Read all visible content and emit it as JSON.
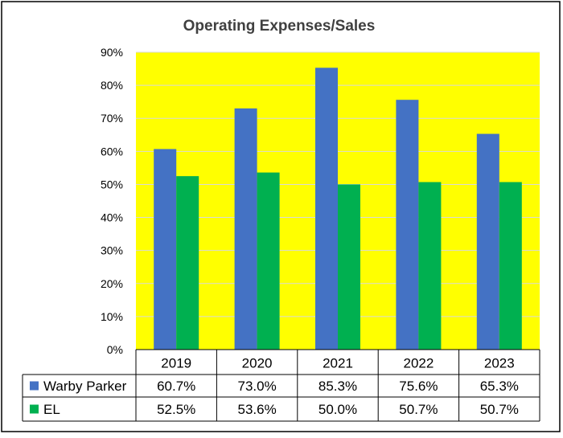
{
  "chart_data": {
    "type": "bar",
    "title": "Operating Expenses/Sales",
    "categories": [
      "2019",
      "2020",
      "2021",
      "2022",
      "2023"
    ],
    "series": [
      {
        "name": "Warby Parker",
        "values": [
          60.7,
          73.0,
          85.3,
          75.6,
          65.3
        ],
        "labels": [
          "60.7%",
          "73.0%",
          "85.3%",
          "75.6%",
          "65.3%"
        ],
        "color": "#4472C4"
      },
      {
        "name": "EL",
        "values": [
          52.5,
          53.6,
          50.0,
          50.7,
          50.7
        ],
        "labels": [
          "52.5%",
          "53.6%",
          "50.0%",
          "50.7%",
          "50.7%"
        ],
        "color": "#00B050"
      }
    ],
    "ylim": [
      0,
      90
    ],
    "yticks": [
      "0%",
      "10%",
      "20%",
      "30%",
      "40%",
      "50%",
      "60%",
      "70%",
      "80%",
      "90%"
    ],
    "plot_background": "#FFFF00",
    "grid": true,
    "legend": "data-table"
  }
}
